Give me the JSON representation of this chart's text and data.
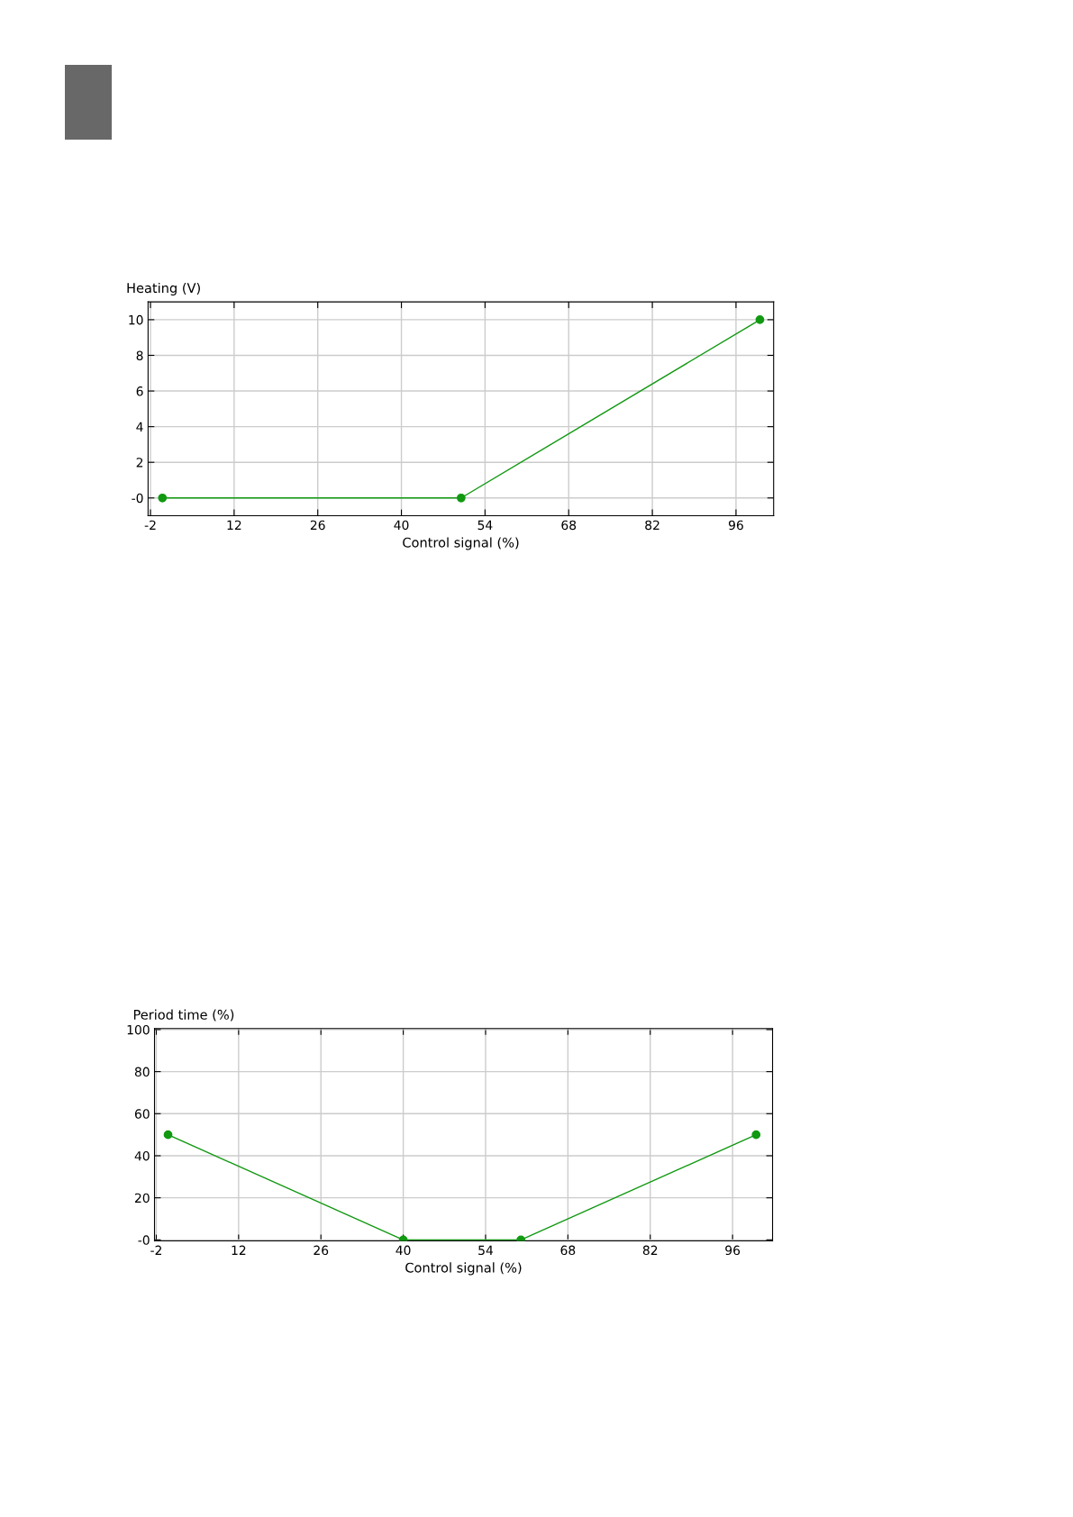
{
  "chart_data": [
    {
      "type": "line",
      "xlabel": "Control signal (%)",
      "ylabel": "Heating (V)",
      "x": [
        0,
        50,
        100
      ],
      "series": [
        {
          "color": "#119911",
          "values": [
            0,
            0,
            10
          ]
        }
      ],
      "xlim": [
        -2.4,
        102.3
      ],
      "xticks": [
        -2,
        12,
        26,
        40,
        54,
        68,
        82,
        96
      ],
      "ylim": [
        -1,
        11
      ],
      "yticks": [
        {
          "value": 0,
          "label": "-0"
        },
        2,
        4,
        6,
        8,
        10
      ],
      "grid": true,
      "marker": "circle",
      "line_style": "solid"
    },
    {
      "type": "line",
      "xlabel": "Control signal (%)",
      "ylabel": "Period time (%)",
      "x": [
        0,
        40,
        60,
        100
      ],
      "series": [
        {
          "color": "#119911",
          "values": [
            50,
            0,
            0,
            50
          ]
        }
      ],
      "xlim": [
        -2.3,
        102.8
      ],
      "xticks": [
        -2,
        12,
        26,
        40,
        54,
        68,
        82,
        96
      ],
      "ylim": [
        -0.5,
        100.5
      ],
      "yticks": [
        {
          "value": 0,
          "label": "-0"
        },
        20,
        40,
        60,
        80,
        100
      ],
      "grid": true,
      "marker": "circle",
      "line_style": "solid"
    }
  ]
}
